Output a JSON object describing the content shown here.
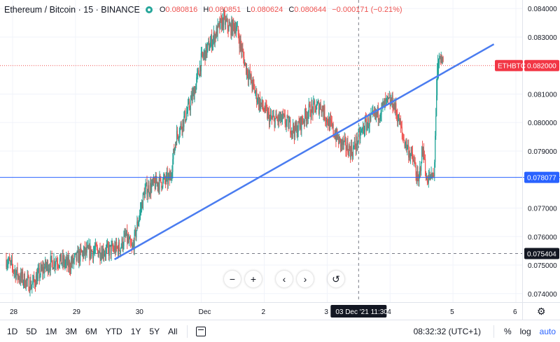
{
  "legend": {
    "symbol": "Ethereum / Bitcoin · 15 · BINANCE",
    "o_label": "O",
    "o": "0.080816",
    "h_label": "H",
    "h": "0.080851",
    "l_label": "L",
    "l": "0.080624",
    "c_label": "C",
    "c": "0.080644",
    "change": "−0.000171 (−0.21%)"
  },
  "price_axis": {
    "ticks": [
      "0.084000",
      "0.083000",
      "0.081000",
      "0.080000",
      "0.079000",
      "0.077000",
      "0.076000",
      "0.075000",
      "0.074000"
    ],
    "last_price_tag": "0.082000",
    "symbol_tag": "ETHBTC",
    "hline_tag": "0.078077",
    "dashed_tag": "0.075404"
  },
  "time_axis": {
    "labels": [
      "28",
      "29",
      "30",
      "Dec",
      "2",
      "3",
      "4",
      "5",
      "6"
    ],
    "crosshair_label": "03 Dec '21   11:30"
  },
  "nav": {
    "zoom_out": "−",
    "zoom_in": "+",
    "left": "‹",
    "right": "›",
    "reset": "↺"
  },
  "bottom": {
    "ranges": [
      "1D",
      "5D",
      "1M",
      "3M",
      "6M",
      "YTD",
      "1Y",
      "5Y",
      "All"
    ],
    "clock": "08:32:32 (UTC+1)",
    "percent": "%",
    "log": "log",
    "auto": "auto"
  },
  "colors": {
    "up": "#26a69a",
    "down": "#ef5350",
    "line": "#2962ff",
    "axis_text": "#131722",
    "tag_red": "#f23645",
    "tag_blue": "#2962ff"
  },
  "chart_data": {
    "type": "candlestick",
    "symbol": "ETHBTC",
    "interval": "15",
    "exchange": "BINANCE",
    "ylim": [
      0.0737,
      0.0843
    ],
    "y_ticks": [
      0.084,
      0.083,
      0.081,
      0.08,
      0.079,
      0.077,
      0.076,
      0.075,
      0.074
    ],
    "x_day_labels": [
      "28",
      "29",
      "30",
      "Dec",
      "2",
      "3",
      "4",
      "5",
      "6"
    ],
    "x_day_positions": [
      28,
      29,
      30,
      31,
      32,
      33,
      34,
      35,
      36
    ],
    "close_path_x": [
      27.9,
      28.1,
      28.3,
      28.5,
      28.7,
      28.9,
      29.1,
      29.3,
      29.5,
      29.7,
      29.8,
      29.9,
      30.0,
      30.1,
      30.3,
      30.5,
      30.6,
      30.8,
      30.9,
      31.0,
      31.2,
      31.35,
      31.45,
      31.55,
      31.7,
      31.9,
      32.1,
      32.3,
      32.5,
      32.7,
      32.9,
      33.0,
      33.2,
      33.4,
      33.6,
      33.8,
      33.95,
      34.05,
      34.15,
      34.2,
      34.3,
      34.38,
      34.45,
      34.5,
      34.55
    ],
    "close_path_y": [
      0.0752,
      0.0746,
      0.0743,
      0.0749,
      0.0752,
      0.075,
      0.0754,
      0.0755,
      0.0755,
      0.0756,
      0.076,
      0.0755,
      0.0766,
      0.0776,
      0.0779,
      0.078,
      0.0795,
      0.0805,
      0.0812,
      0.0822,
      0.083,
      0.0836,
      0.0833,
      0.0834,
      0.082,
      0.0808,
      0.0801,
      0.0801,
      0.0797,
      0.0804,
      0.0806,
      0.0801,
      0.0793,
      0.079,
      0.0799,
      0.0803,
      0.0807,
      0.0807,
      0.08,
      0.0795,
      0.079,
      0.0786,
      0.0778,
      0.0789,
      0.079
    ],
    "spike_path_x": [
      34.55,
      34.7,
      34.72,
      34.75,
      34.78,
      34.85
    ],
    "spike_path_y": [
      0.078,
      0.0781,
      0.0798,
      0.0814,
      0.0822,
      0.0822
    ],
    "trendline": {
      "x1": 29.62,
      "y1": 0.0752,
      "x2": 35.65,
      "y2": 0.08275
    },
    "horizontal_line": 0.078077,
    "dashed_horizontal_line": 0.075404,
    "last_price_line": 0.082,
    "crosshair_x": 33.5
  }
}
